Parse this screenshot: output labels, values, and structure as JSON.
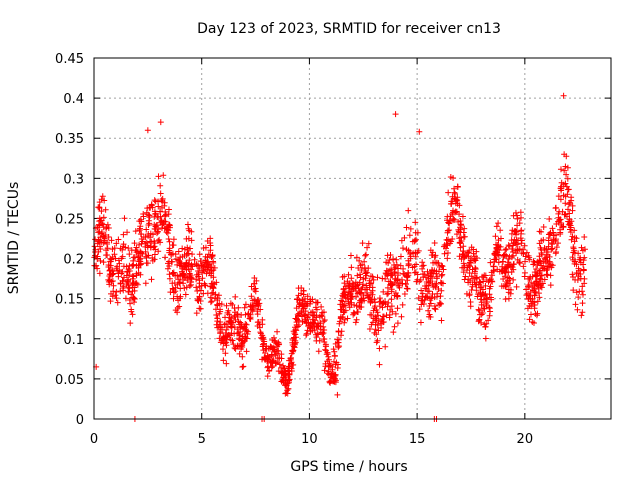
{
  "chart_data": {
    "type": "scatter",
    "title": "Day 123 of 2023, SRMTID for receiver cn13",
    "xlabel": "GPS time / hours",
    "ylabel": "SRMTID / TECUs",
    "xlim": [
      0,
      24
    ],
    "ylim": [
      0,
      0.45
    ],
    "grid": true,
    "marker": "+",
    "x_ticks": [
      0,
      5,
      10,
      15,
      20
    ],
    "x_tick_labels": [
      "0",
      "5",
      "10",
      "15",
      "20"
    ],
    "y_ticks": [
      0,
      0.05,
      0.1,
      0.15,
      0.2,
      0.25,
      0.3,
      0.35,
      0.4,
      0.45
    ],
    "y_tick_labels": [
      "0",
      "0.05",
      "0.1",
      "0.15",
      "0.2",
      "0.25",
      "0.3",
      "0.35",
      "0.4",
      "0.45"
    ],
    "series": [
      {
        "name": "SRMTID",
        "color": "#ff0000",
        "trend": {
          "x": [
            0,
            0.5,
            1,
            1.5,
            2,
            2.5,
            3,
            3.5,
            4,
            4.5,
            5,
            5.5,
            6,
            6.5,
            7,
            7.5,
            8,
            8.5,
            9,
            9.5,
            10,
            10.5,
            11,
            11.5,
            12,
            12.5,
            13,
            13.5,
            14,
            14.5,
            15,
            15.5,
            16,
            16.5,
            17,
            17.5,
            18,
            18.5,
            19,
            19.5,
            20,
            20.5,
            21,
            21.5,
            22,
            22.5,
            22.8
          ],
          "y": [
            0.19,
            0.2,
            0.17,
            0.2,
            0.22,
            0.2,
            0.23,
            0.2,
            0.22,
            0.19,
            0.17,
            0.14,
            0.13,
            0.13,
            0.13,
            0.1,
            0.08,
            0.09,
            0.09,
            0.1,
            0.12,
            0.1,
            0.1,
            0.12,
            0.15,
            0.13,
            0.17,
            0.16,
            0.18,
            0.15,
            0.2,
            0.18,
            0.2,
            0.23,
            0.2,
            0.19,
            0.17,
            0.2,
            0.16,
            0.2,
            0.2,
            0.2,
            0.18,
            0.22,
            0.25,
            0.22,
            0.2
          ],
          "spread": [
            0.06,
            0.07,
            0.06,
            0.07,
            0.07,
            0.08,
            0.07,
            0.06,
            0.06,
            0.06,
            0.06,
            0.06,
            0.05,
            0.05,
            0.05,
            0.04,
            0.03,
            0.03,
            0.03,
            0.04,
            0.04,
            0.05,
            0.04,
            0.05,
            0.06,
            0.06,
            0.06,
            0.07,
            0.08,
            0.07,
            0.07,
            0.07,
            0.06,
            0.06,
            0.06,
            0.06,
            0.06,
            0.06,
            0.06,
            0.06,
            0.06,
            0.06,
            0.06,
            0.07,
            0.08,
            0.07,
            0.06
          ]
        },
        "notable_points": [
          {
            "x": 21.8,
            "y": 0.403
          },
          {
            "x": 3.1,
            "y": 0.37
          },
          {
            "x": 14.0,
            "y": 0.38
          },
          {
            "x": 15.1,
            "y": 0.358
          },
          {
            "x": 2.5,
            "y": 0.36
          },
          {
            "x": 0.1,
            "y": 0.065
          },
          {
            "x": 11.3,
            "y": 0.03
          },
          {
            "x": 1.9,
            "y": 0.0
          },
          {
            "x": 7.8,
            "y": 0.0
          },
          {
            "x": 7.9,
            "y": 0.0
          },
          {
            "x": 15.8,
            "y": 0.0
          },
          {
            "x": 15.9,
            "y": 0.0
          }
        ]
      }
    ]
  }
}
